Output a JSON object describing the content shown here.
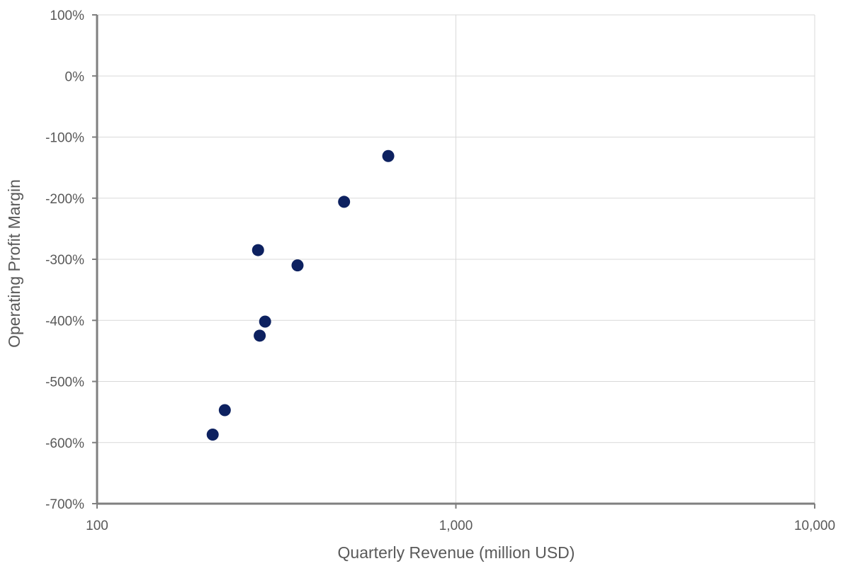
{
  "chart_data": {
    "type": "scatter",
    "title": "",
    "xlabel": "Quarterly Revenue (million USD)",
    "ylabel": "Operating Profit Margin",
    "x_scale": "log",
    "xlim": [
      100,
      10000
    ],
    "ylim": [
      -700,
      100
    ],
    "x_ticks": [
      100,
      1000,
      10000
    ],
    "x_tick_labels": [
      "100",
      "1,000",
      "10,000"
    ],
    "y_ticks": [
      100,
      0,
      -100,
      -200,
      -300,
      -400,
      -500,
      -600,
      -700
    ],
    "y_tick_labels": [
      "100%",
      "0%",
      "-100%",
      "-200%",
      "-300%",
      "-400%",
      "-500%",
      "-600%",
      "-700%"
    ],
    "y_unit": "%",
    "grid": true,
    "legend": "none",
    "marker_color": "#0d2160",
    "series": [
      {
        "points": [
          {
            "x": 210,
            "y": -587
          },
          {
            "x": 227,
            "y": -547
          },
          {
            "x": 281,
            "y": -285
          },
          {
            "x": 284,
            "y": -425
          },
          {
            "x": 294,
            "y": -402
          },
          {
            "x": 362,
            "y": -310
          },
          {
            "x": 488,
            "y": -206
          },
          {
            "x": 648,
            "y": -131
          }
        ]
      }
    ]
  }
}
